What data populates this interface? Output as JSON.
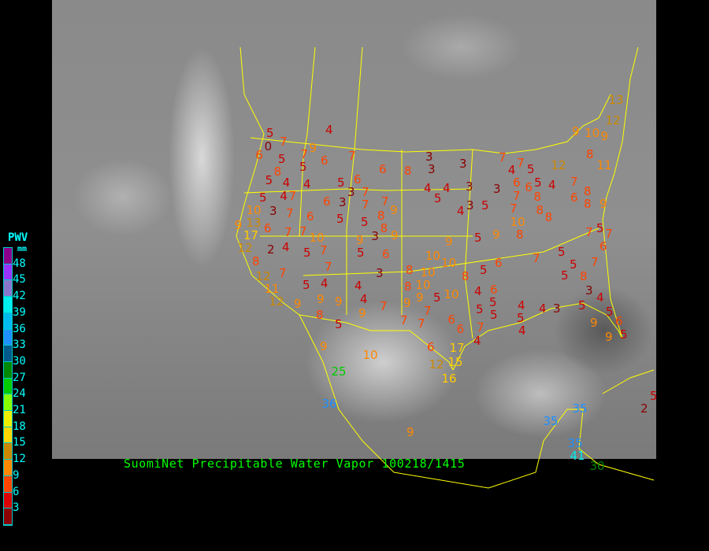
{
  "title": "SuomiNet Precipitable Water Vapor 100218/1415",
  "legend": {
    "title": "PWV",
    "unit": "mm",
    "ticks": [
      "48",
      "45",
      "42",
      "39",
      "36",
      "33",
      "30",
      "27",
      "24",
      "21",
      "18",
      "15",
      "12",
      "9",
      "6",
      "3"
    ],
    "colors_top_to_bottom": [
      "#8c008c",
      "#9933ff",
      "#8877cc",
      "#00eeee",
      "#00bbee",
      "#1e90ff",
      "#005a8c",
      "#008800",
      "#00cc00",
      "#88ff00",
      "#eeee00",
      "#ffd700",
      "#cc8800",
      "#ff8800",
      "#ff4400",
      "#dd0000",
      "#8b0000"
    ]
  },
  "station_values": [
    "5",
    "0",
    "7",
    "9",
    "4",
    "6",
    "5",
    "7",
    "5",
    "8",
    "6",
    "7",
    "6",
    "8",
    "5",
    "4",
    "4",
    "7",
    "4",
    "5",
    "6",
    "3",
    "7",
    "6",
    "3",
    "7",
    "7",
    "5",
    "10",
    "3",
    "7",
    "6",
    "5",
    "5",
    "8",
    "8",
    "9",
    "9",
    "13",
    "17",
    "6",
    "7",
    "7",
    "10",
    "7",
    "9",
    "3",
    "9",
    "12",
    "2",
    "4",
    "5",
    "5",
    "6",
    "8",
    "7",
    "7",
    "3",
    "8",
    "12",
    "11",
    "12",
    "5",
    "4",
    "4",
    "4",
    "9",
    "9",
    "9",
    "7",
    "5",
    "8",
    "9",
    "3",
    "3",
    "3",
    "4",
    "4",
    "5",
    "3",
    "3",
    "4",
    "3",
    "5",
    "6",
    "7",
    "7",
    "4",
    "5",
    "5",
    "6",
    "7",
    "4",
    "7",
    "6",
    "8",
    "8",
    "9",
    "12",
    "8",
    "9",
    "10",
    "9",
    "13",
    "12",
    "11",
    "7",
    "8",
    "8",
    "8",
    "10",
    "8",
    "5",
    "9",
    "9",
    "10",
    "10",
    "10",
    "10",
    "9",
    "8",
    "5",
    "6",
    "7",
    "7",
    "7",
    "6",
    "5",
    "5",
    "7",
    "5",
    "5",
    "8",
    "8",
    "9",
    "10",
    "5",
    "7",
    "7",
    "7",
    "6",
    "6",
    "5",
    "5",
    "6",
    "4",
    "5",
    "4",
    "5",
    "4",
    "4",
    "3",
    "5",
    "3",
    "4",
    "5",
    "6",
    "9",
    "9",
    "5",
    "4",
    "7",
    "9",
    "10",
    "6",
    "17",
    "12",
    "15",
    "25",
    "16",
    "9",
    "36",
    "35",
    "35",
    "35",
    "41",
    "30",
    "2",
    "5"
  ],
  "colors": {
    "title": "#00ff00",
    "legend_text": "#00ffff",
    "borders": "#ffff00",
    "background": "#000000"
  }
}
